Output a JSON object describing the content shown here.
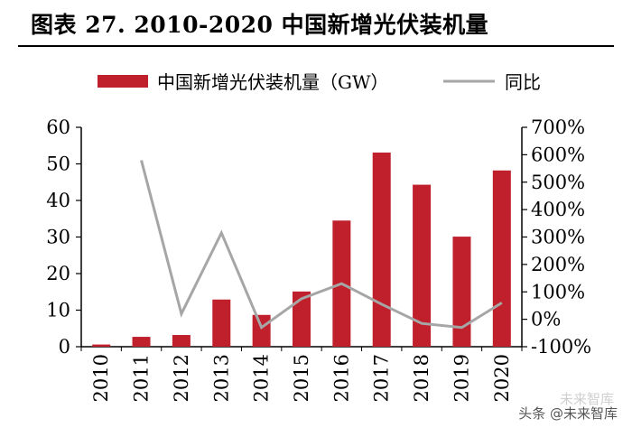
{
  "header": {
    "figure_title": "图表 27. 2010-2020 中国新增光伏装机量"
  },
  "watermark": {
    "text": "头条 @未来智库",
    "ghost_text": "未来智库"
  },
  "chart_data": {
    "type": "bar",
    "title": "图表 27. 2010-2020 中国新增光伏装机量",
    "categories": [
      "2010",
      "2011",
      "2012",
      "2013",
      "2014",
      "2015",
      "2016",
      "2017",
      "2018",
      "2019",
      "2020"
    ],
    "series": [
      {
        "name": "中国新增光伏装机量（GW）",
        "type": "bar",
        "axis": "left",
        "color": "#C0202C",
        "values": [
          0.6,
          2.7,
          3.2,
          12.9,
          8.7,
          15.1,
          34.5,
          53.1,
          44.3,
          30.1,
          48.2
        ]
      },
      {
        "name": "同比",
        "type": "line",
        "axis": "right",
        "color": "#A6A6A6",
        "values": [
          null,
          580,
          20,
          315,
          -30,
          75,
          130,
          55,
          -15,
          -30,
          60
        ]
      }
    ],
    "left_axis": {
      "min": 0,
      "max": 60,
      "ticks": [
        "0",
        "10",
        "20",
        "30",
        "40",
        "50",
        "60"
      ]
    },
    "right_axis": {
      "min": -100,
      "max": 700,
      "ticks": [
        "-100%",
        "0%",
        "100%",
        "200%",
        "300%",
        "400%",
        "500%",
        "600%",
        "700%"
      ]
    },
    "legend_position": "top",
    "grid": false
  }
}
